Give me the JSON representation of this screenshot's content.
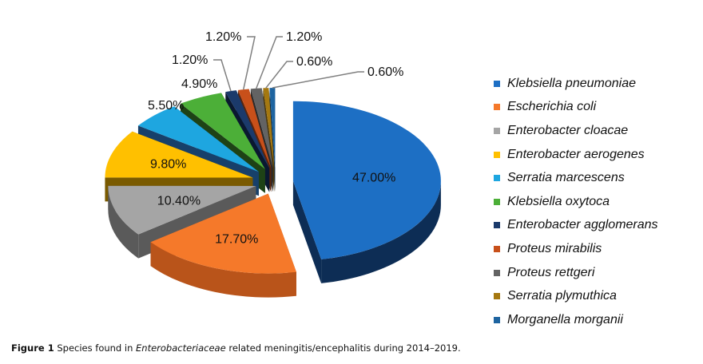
{
  "chart_data": {
    "type": "pie",
    "style": "3d-exploded",
    "legend_position": "right",
    "slices": [
      {
        "label": "Klebsiella pneumoniae",
        "value": 47.0,
        "text": "47.00%",
        "color": "#1d6fc4",
        "side": "#0d2d55"
      },
      {
        "label": "Escherichia coli",
        "value": 17.7,
        "text": "17.70%",
        "color": "#f5792a",
        "side": "#b9541a"
      },
      {
        "label": "Enterobacter cloacae",
        "value": 10.4,
        "text": "10.40%",
        "color": "#a5a5a5",
        "side": "#5a5a5a"
      },
      {
        "label": "Enterobacter aerogenes",
        "value": 9.8,
        "text": "9.80%",
        "color": "#ffc000",
        "side": "#7a5a00"
      },
      {
        "label": "Serratia marcescens",
        "value": 5.5,
        "text": "5.50%",
        "color": "#1ea6e0",
        "side": "#17406a"
      },
      {
        "label": "Klebsiella oxytoca",
        "value": 4.9,
        "text": "4.90%",
        "color": "#4caf38",
        "side": "#1e4216"
      },
      {
        "label": "Enterobacter agglomerans",
        "value": 1.2,
        "text": "1.20%",
        "color": "#1b3a6b",
        "side": "#0a1830"
      },
      {
        "label": "Proteus mirabilis",
        "value": 1.2,
        "text": "1.20%",
        "color": "#c8501a",
        "side": "#5c250c"
      },
      {
        "label": "Proteus rettgeri",
        "value": 1.2,
        "text": "1.20%",
        "color": "#636363",
        "side": "#2a2a2a"
      },
      {
        "label": "Serratia plymuthica",
        "value": 0.6,
        "text": "0.60%",
        "color": "#a57810",
        "side": "#4d3808"
      },
      {
        "label": "Morganella morganii",
        "value": 0.6,
        "text": "0.60%",
        "color": "#1e64a0",
        "side": "#0c2c4a"
      }
    ]
  },
  "caption": {
    "label": "Figure 1",
    "pre": " Species found in ",
    "italic": "Enterobacteriaceae",
    "post": " related meningitis/encephalitis during 2014–2019."
  }
}
